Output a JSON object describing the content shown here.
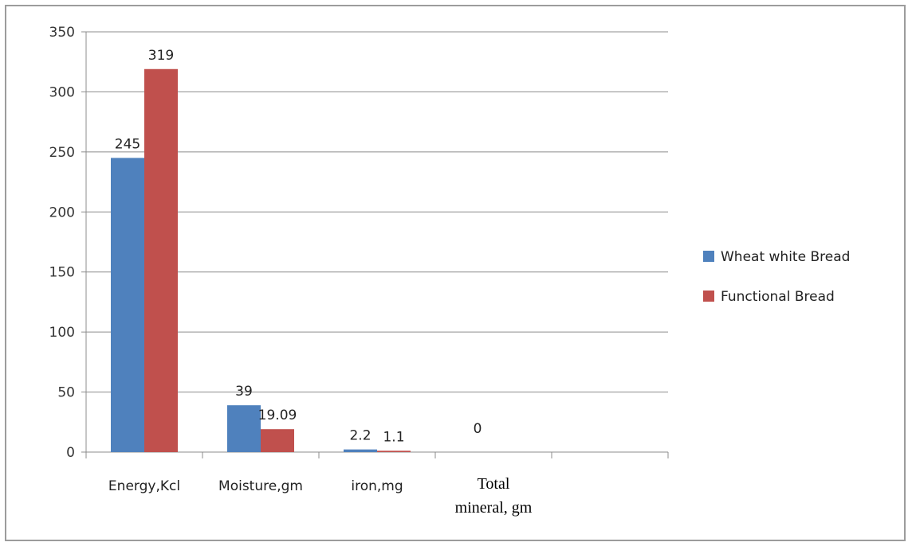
{
  "chart_data": {
    "type": "bar",
    "categories": [
      "Energy,Kcl",
      "Moisture,gm",
      "iron,mg",
      "Total mineral, gm",
      ""
    ],
    "series": [
      {
        "name": "Wheat white Bread",
        "values": [
          245,
          39,
          2.2,
          null,
          null
        ],
        "labels": [
          "245",
          "39",
          "2.2",
          "",
          ""
        ],
        "color": "#4f81bd"
      },
      {
        "name": "Functional Bread",
        "values": [
          319,
          19.09,
          1.1,
          null,
          null
        ],
        "labels": [
          "319",
          "19.09",
          "1.1",
          "",
          ""
        ],
        "color": "#c0504d"
      }
    ],
    "extra_labels": [
      {
        "category_index": 3,
        "text": "0"
      }
    ],
    "yticks": [
      "0",
      "50",
      "100",
      "150",
      "200",
      "250",
      "300",
      "350"
    ],
    "ylim": [
      0,
      350
    ],
    "grid": true,
    "legend_position": "right"
  }
}
